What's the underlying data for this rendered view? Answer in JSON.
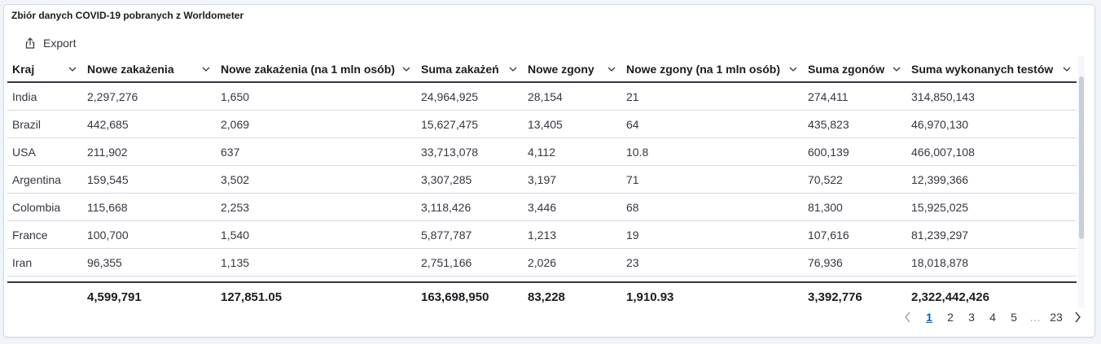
{
  "panel": {
    "title": "Zbiór danych COVID-19 pobranych z Worldometer"
  },
  "toolbar": {
    "export_label": "Export"
  },
  "table": {
    "columns": [
      "Kraj",
      "Nowe zakażenia",
      "Nowe zakażenia (na 1 mln osób)",
      "Suma zakażeń",
      "Nowe zgony",
      "Nowe zgony (na 1 mln osób)",
      "Suma zgonów",
      "Suma wykonanych testów"
    ],
    "rows": [
      [
        "India",
        "2,297,276",
        "1,650",
        "24,964,925",
        "28,154",
        "21",
        "274,411",
        "314,850,143"
      ],
      [
        "Brazil",
        "442,685",
        "2,069",
        "15,627,475",
        "13,405",
        "64",
        "435,823",
        "46,970,130"
      ],
      [
        "USA",
        "211,902",
        "637",
        "33,713,078",
        "4,112",
        "10.8",
        "600,139",
        "466,007,108"
      ],
      [
        "Argentina",
        "159,545",
        "3,502",
        "3,307,285",
        "3,197",
        "71",
        "70,522",
        "12,399,366"
      ],
      [
        "Colombia",
        "115,668",
        "2,253",
        "3,118,426",
        "3,446",
        "68",
        "81,300",
        "15,925,025"
      ],
      [
        "France",
        "100,700",
        "1,540",
        "5,877,787",
        "1,213",
        "19",
        "107,616",
        "81,239,297"
      ],
      [
        "Iran",
        "96,355",
        "1,135",
        "2,751,166",
        "2,026",
        "23",
        "76,936",
        "18,018,878"
      ]
    ],
    "totals": [
      "",
      "4,599,791",
      "127,851.05",
      "163,698,950",
      "83,228",
      "1,910.93",
      "3,392,776",
      "2,322,442,426"
    ]
  },
  "pagination": {
    "pages": [
      "1",
      "2",
      "3",
      "4",
      "5",
      "…",
      "23"
    ],
    "current": "1"
  }
}
